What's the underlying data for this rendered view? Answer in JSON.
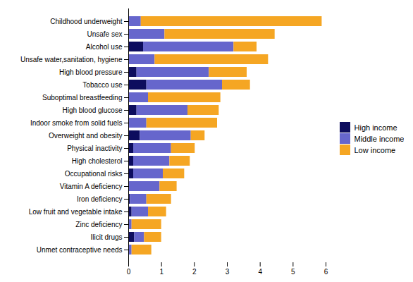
{
  "chart_data": {
    "type": "bar",
    "orientation": "horizontal",
    "stacked": true,
    "categories": [
      "Childhood underweight",
      "Unsafe sex",
      "Alcohol use",
      "Unsafe water,sanitation, hygiene",
      "High blood pressure",
      "Tobacco use",
      "Suboptimal breastfeeding",
      "High blood glucose",
      "Indoor smoke from solid fuels",
      "Overweight and obesity",
      "Physical inactivity",
      "High cholesterol",
      "Occupational risks",
      "Vitamin A deficiency",
      "Iron deficiency",
      "Low fruit and vegetable intake",
      "Zinc deficiency",
      "Ilicit drugs",
      "Unmet contraceptive needs"
    ],
    "series": [
      {
        "name": "High income",
        "color": "#0d0d5e",
        "values": [
          0.0,
          0.0,
          0.45,
          0.0,
          0.25,
          0.55,
          0.0,
          0.25,
          0.0,
          0.35,
          0.15,
          0.15,
          0.15,
          0.0,
          0.05,
          0.1,
          0.0,
          0.18,
          0.0
        ]
      },
      {
        "name": "Middle income",
        "color": "#6666cc",
        "values": [
          0.38,
          1.1,
          2.75,
          0.8,
          2.2,
          2.3,
          0.6,
          1.55,
          0.55,
          1.55,
          1.15,
          1.1,
          0.9,
          0.95,
          0.5,
          0.5,
          0.1,
          0.3,
          0.1
        ]
      },
      {
        "name": "Low income",
        "color": "#f5a623",
        "values": [
          5.5,
          3.35,
          0.7,
          3.45,
          1.15,
          0.85,
          2.2,
          0.95,
          2.15,
          0.42,
          0.72,
          0.62,
          0.65,
          0.52,
          0.75,
          0.55,
          0.9,
          0.52,
          0.6
        ]
      }
    ],
    "xlim": [
      0,
      6
    ],
    "xticks": [
      0,
      1,
      2,
      3,
      4,
      5,
      6
    ],
    "grid": false,
    "legend": "right"
  }
}
